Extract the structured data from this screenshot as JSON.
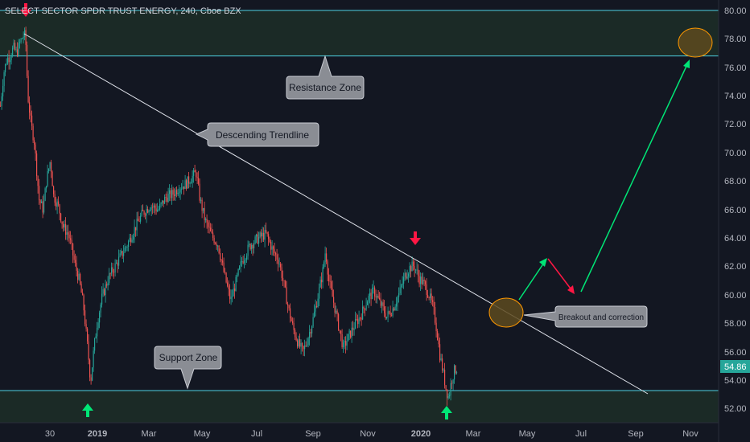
{
  "chart_data": {
    "type": "candlestick",
    "title": "SELECT SECTOR SPDR TRUST ENERGY, 240, Cboe BZX",
    "current_price": "54.86",
    "ylim": [
      51,
      80.6
    ],
    "y_ticks": [
      "52.00",
      "54.00",
      "56.00",
      "58.00",
      "60.00",
      "62.00",
      "64.00",
      "66.00",
      "68.00",
      "70.00",
      "72.00",
      "74.00",
      "76.00",
      "78.00",
      "80.00"
    ],
    "x_ticks": [
      "30",
      "2019",
      "Mar",
      "May",
      "Jul",
      "Sep",
      "Nov",
      "2020",
      "Mar",
      "May",
      "Jul",
      "Sep",
      "Nov"
    ],
    "price_path": [
      {
        "t": 0,
        "p": 73.3
      },
      {
        "t": 4,
        "p": 75.6
      },
      {
        "t": 8,
        "p": 76.6
      },
      {
        "t": 12,
        "p": 76.8
      },
      {
        "t": 16,
        "p": 77.4
      },
      {
        "t": 20,
        "p": 77.0
      },
      {
        "t": 24,
        "p": 77.7
      },
      {
        "t": 28,
        "p": 78.2
      },
      {
        "t": 31,
        "p": 78.3
      },
      {
        "t": 34,
        "p": 74.0
      },
      {
        "t": 38,
        "p": 72.0
      },
      {
        "t": 42,
        "p": 70.8
      },
      {
        "t": 48,
        "p": 66.7
      },
      {
        "t": 53,
        "p": 66.0
      },
      {
        "t": 57,
        "p": 68.0
      },
      {
        "t": 62,
        "p": 69.5
      },
      {
        "t": 66,
        "p": 67.0
      },
      {
        "t": 72,
        "p": 66.2
      },
      {
        "t": 78,
        "p": 64.8
      },
      {
        "t": 85,
        "p": 64.2
      },
      {
        "t": 92,
        "p": 62.3
      },
      {
        "t": 98,
        "p": 61.0
      },
      {
        "t": 103,
        "p": 59.3
      },
      {
        "t": 108,
        "p": 56.5
      },
      {
        "t": 112,
        "p": 53.9
      },
      {
        "t": 116,
        "p": 56.2
      },
      {
        "t": 120,
        "p": 58.0
      },
      {
        "t": 126,
        "p": 59.8
      },
      {
        "t": 134,
        "p": 61.2
      },
      {
        "t": 142,
        "p": 62.0
      },
      {
        "t": 150,
        "p": 62.8
      },
      {
        "t": 158,
        "p": 63.6
      },
      {
        "t": 166,
        "p": 64.6
      },
      {
        "t": 176,
        "p": 65.7
      },
      {
        "t": 186,
        "p": 66.3
      },
      {
        "t": 196,
        "p": 66.0
      },
      {
        "t": 206,
        "p": 66.9
      },
      {
        "t": 214,
        "p": 67.1
      },
      {
        "t": 222,
        "p": 67.6
      },
      {
        "t": 230,
        "p": 67.8
      },
      {
        "t": 238,
        "p": 68.3
      },
      {
        "t": 243,
        "p": 68.6
      },
      {
        "t": 248,
        "p": 66.7
      },
      {
        "t": 254,
        "p": 65.3
      },
      {
        "t": 262,
        "p": 64.2
      },
      {
        "t": 270,
        "p": 63.6
      },
      {
        "t": 278,
        "p": 61.5
      },
      {
        "t": 286,
        "p": 59.6
      },
      {
        "t": 292,
        "p": 60.8
      },
      {
        "t": 300,
        "p": 62.4
      },
      {
        "t": 310,
        "p": 63.5
      },
      {
        "t": 320,
        "p": 64.0
      },
      {
        "t": 330,
        "p": 64.3
      },
      {
        "t": 338,
        "p": 63.2
      },
      {
        "t": 346,
        "p": 62.4
      },
      {
        "t": 352,
        "p": 60.8
      },
      {
        "t": 358,
        "p": 59.0
      },
      {
        "t": 364,
        "p": 57.6
      },
      {
        "t": 370,
        "p": 56.6
      },
      {
        "t": 376,
        "p": 56.0
      },
      {
        "t": 382,
        "p": 57.0
      },
      {
        "t": 388,
        "p": 58.2
      },
      {
        "t": 394,
        "p": 59.8
      },
      {
        "t": 400,
        "p": 61.5
      },
      {
        "t": 404,
        "p": 63.2
      },
      {
        "t": 408,
        "p": 61.0
      },
      {
        "t": 414,
        "p": 59.5
      },
      {
        "t": 420,
        "p": 57.9
      },
      {
        "t": 426,
        "p": 56.3
      },
      {
        "t": 432,
        "p": 57.0
      },
      {
        "t": 440,
        "p": 57.9
      },
      {
        "t": 448,
        "p": 58.6
      },
      {
        "t": 456,
        "p": 59.7
      },
      {
        "t": 464,
        "p": 60.3
      },
      {
        "t": 472,
        "p": 59.4
      },
      {
        "t": 480,
        "p": 58.5
      },
      {
        "t": 488,
        "p": 59.1
      },
      {
        "t": 496,
        "p": 60.2
      },
      {
        "t": 502,
        "p": 61.3
      },
      {
        "t": 508,
        "p": 61.9
      },
      {
        "t": 514,
        "p": 62.1
      },
      {
        "t": 520,
        "p": 61.2
      },
      {
        "t": 526,
        "p": 60.8
      },
      {
        "t": 532,
        "p": 60.1
      },
      {
        "t": 538,
        "p": 59.0
      },
      {
        "t": 542,
        "p": 57.6
      },
      {
        "t": 546,
        "p": 55.8
      },
      {
        "t": 550,
        "p": 54.6
      },
      {
        "t": 554,
        "p": 53.3
      },
      {
        "t": 557,
        "p": 52.8
      },
      {
        "t": 560,
        "p": 53.9
      },
      {
        "t": 564,
        "p": 54.7
      },
      {
        "t": 568,
        "p": 54.9
      }
    ],
    "annotations": {
      "resistance_zone": {
        "label": "Resistance Zone",
        "top": 80.0,
        "bottom": 76.8
      },
      "support_zone": {
        "label": "Support Zone",
        "top": 53.3
      },
      "trendline": {
        "label": "Descending Trendline"
      },
      "breakout": {
        "label": "Breakout and correction"
      }
    }
  },
  "colors": {
    "background": "#131722",
    "zone_line": "#4dd0e1",
    "zone_fill": "#1b2a26",
    "up_candle": "#26a69a",
    "down_candle": "#ef5350",
    "trendline": "#e0e3eb",
    "arrow_green": "#00e676",
    "arrow_red": "#ff1744",
    "circle_fill": "#5d4a1f",
    "circle_stroke": "#ff9800",
    "price_tag": "#26a69a"
  }
}
